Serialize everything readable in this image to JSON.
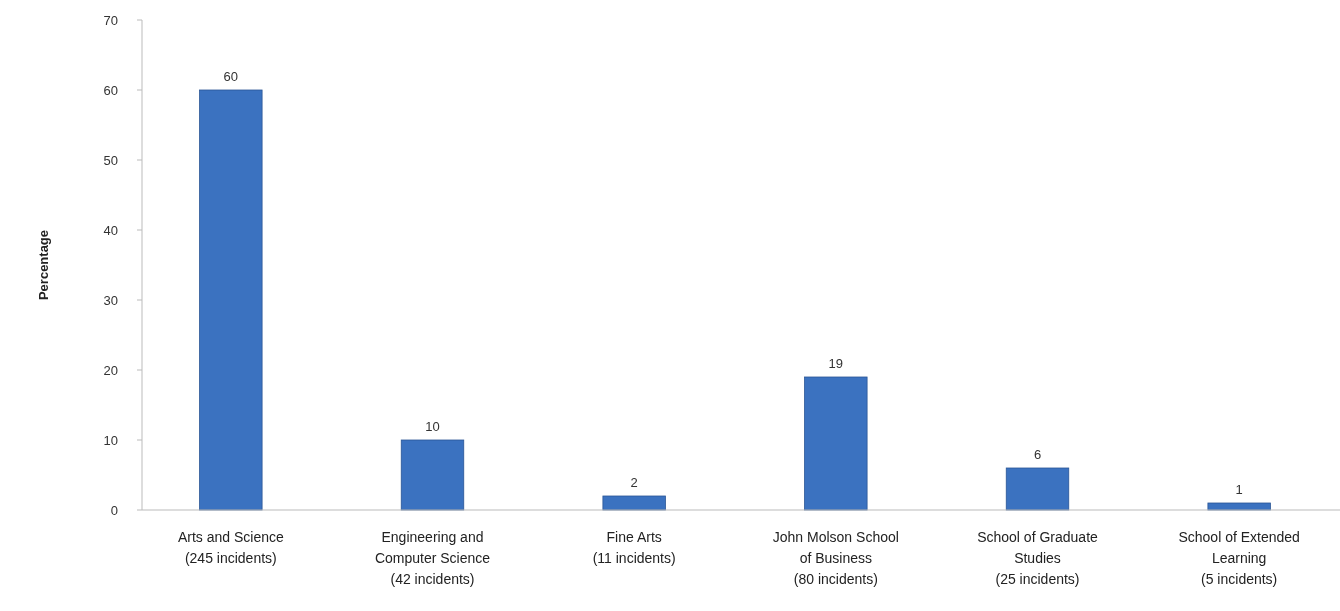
{
  "chart_data": {
    "type": "bar",
    "ylabel": "Percentage",
    "categories": [
      "Arts and Science\n(245 incidents)",
      "Engineering and\nComputer Science\n(42 incidents)",
      "Fine Arts\n(11 incidents)",
      "John Molson School\nof Business\n(80 incidents)",
      "School of Graduate\nStudies\n(25 incidents)",
      "School of Extended\nLearning\n(5 incidents)"
    ],
    "values": [
      60,
      10,
      2,
      19,
      6,
      1
    ],
    "color": "#3b72c0",
    "ylim": [
      0,
      70
    ],
    "yticks": [
      0,
      10,
      20,
      30,
      40,
      50,
      60,
      70
    ],
    "data_labels": true
  }
}
